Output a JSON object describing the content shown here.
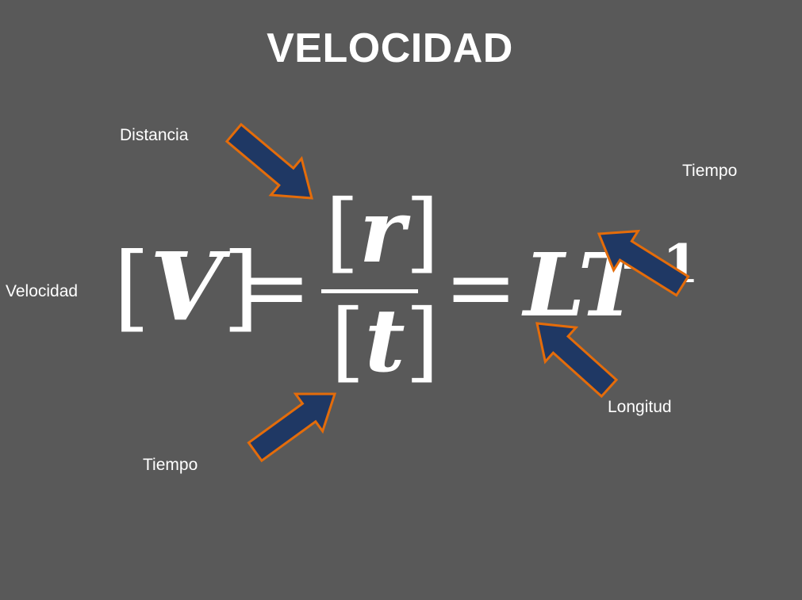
{
  "title": "VELOCIDAD",
  "labels": {
    "distancia": "Distancia",
    "tiempo_top": "Tiempo",
    "velocidad": "Velocidad",
    "tiempo_bottom": "Tiempo",
    "longitud": "Longitud"
  },
  "equation": {
    "lhs_open": "[",
    "lhs_var": "V",
    "lhs_close": "]",
    "equals": "=",
    "numerator_open": "[",
    "numerator_var": "r",
    "numerator_close": "]",
    "denominator_open": "[",
    "denominator_var": "t",
    "denominator_close": "]",
    "rhs": "LT",
    "exponent": "−1"
  },
  "colors": {
    "background": "#595959",
    "arrow_fill": "#1f3864",
    "arrow_stroke": "#e46c0a",
    "text": "#ffffff"
  }
}
